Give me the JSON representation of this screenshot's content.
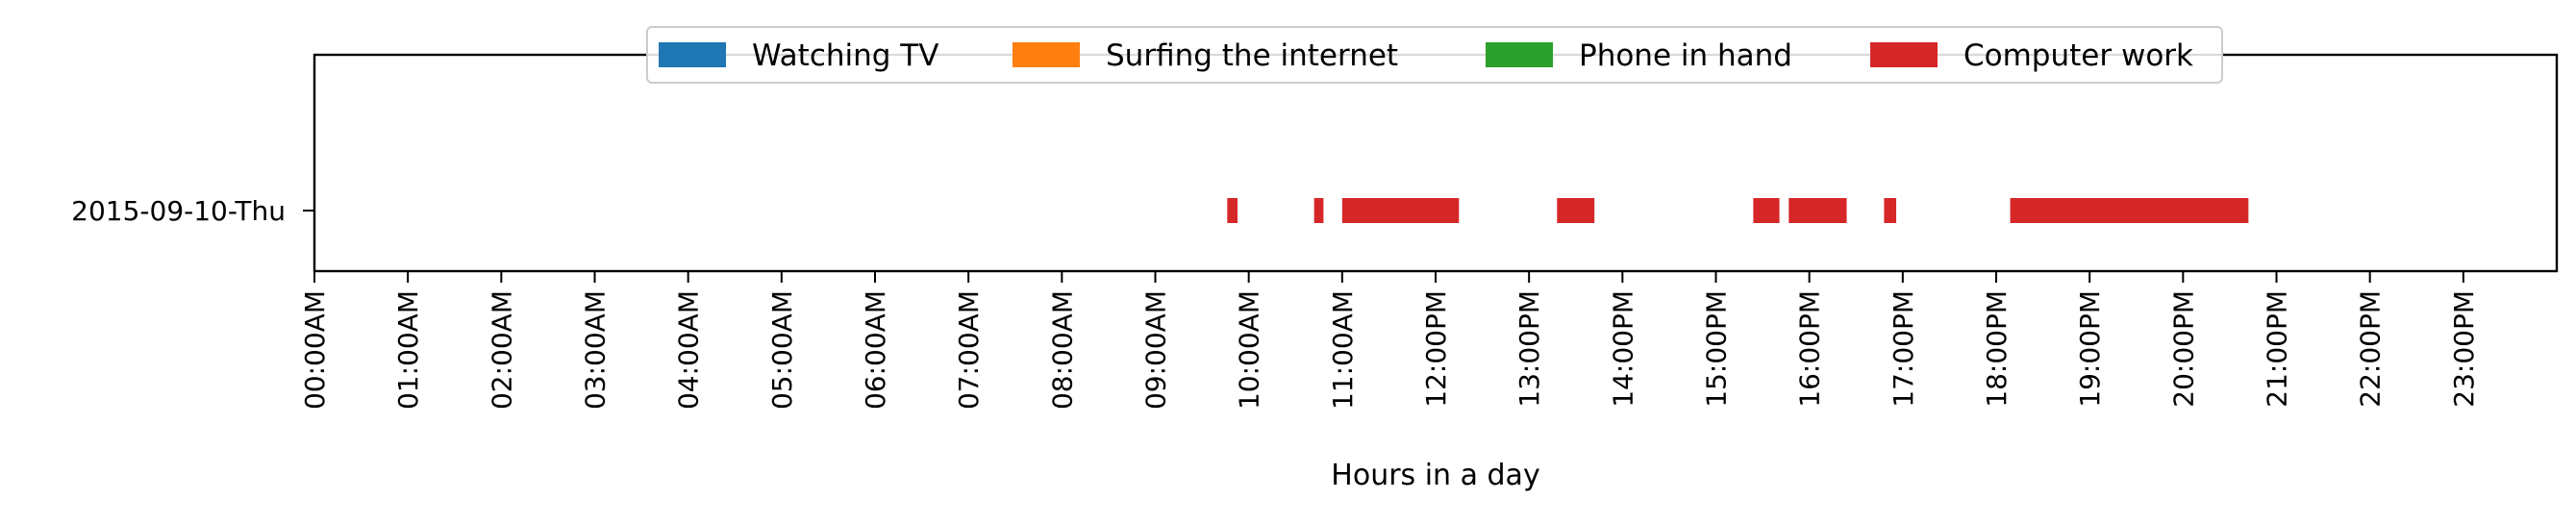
{
  "chart_data": {
    "type": "bar",
    "orientation": "horizontal",
    "title": "",
    "xlabel": "Hours in a day",
    "ylabel": "",
    "categories": [
      "2015-09-10-Thu"
    ],
    "xlim": [
      0,
      24
    ],
    "x_ticks": [
      "00:00AM",
      "01:00AM",
      "02:00AM",
      "03:00AM",
      "04:00AM",
      "05:00AM",
      "06:00AM",
      "07:00AM",
      "08:00AM",
      "09:00AM",
      "10:00AM",
      "11:00AM",
      "12:00PM",
      "13:00PM",
      "14:00PM",
      "15:00PM",
      "16:00PM",
      "17:00PM",
      "18:00PM",
      "19:00PM",
      "20:00PM",
      "21:00PM",
      "22:00PM",
      "23:00PM"
    ],
    "x_tick_values": [
      0,
      1,
      2,
      3,
      4,
      5,
      6,
      7,
      8,
      9,
      10,
      11,
      12,
      13,
      14,
      15,
      16,
      17,
      18,
      19,
      20,
      21,
      22,
      23
    ],
    "legend_position": "top-center",
    "grid": false,
    "series": [
      {
        "name": "Watching TV",
        "color": "#1f77b4",
        "intervals": []
      },
      {
        "name": "Surfing the internet",
        "color": "#ff7f0e",
        "intervals": []
      },
      {
        "name": "Phone in hand",
        "color": "#2ca02c",
        "intervals": []
      },
      {
        "name": "Computer work",
        "color": "#d62728",
        "intervals": [
          {
            "category": "2015-09-10-Thu",
            "start": 9.77,
            "end": 9.88
          },
          {
            "category": "2015-09-10-Thu",
            "start": 10.7,
            "end": 10.8
          },
          {
            "category": "2015-09-10-Thu",
            "start": 11.0,
            "end": 12.25
          },
          {
            "category": "2015-09-10-Thu",
            "start": 13.3,
            "end": 13.7
          },
          {
            "category": "2015-09-10-Thu",
            "start": 15.4,
            "end": 15.68
          },
          {
            "category": "2015-09-10-Thu",
            "start": 15.78,
            "end": 16.4
          },
          {
            "category": "2015-09-10-Thu",
            "start": 16.8,
            "end": 16.93
          },
          {
            "category": "2015-09-10-Thu",
            "start": 18.15,
            "end": 20.7
          }
        ]
      }
    ]
  }
}
